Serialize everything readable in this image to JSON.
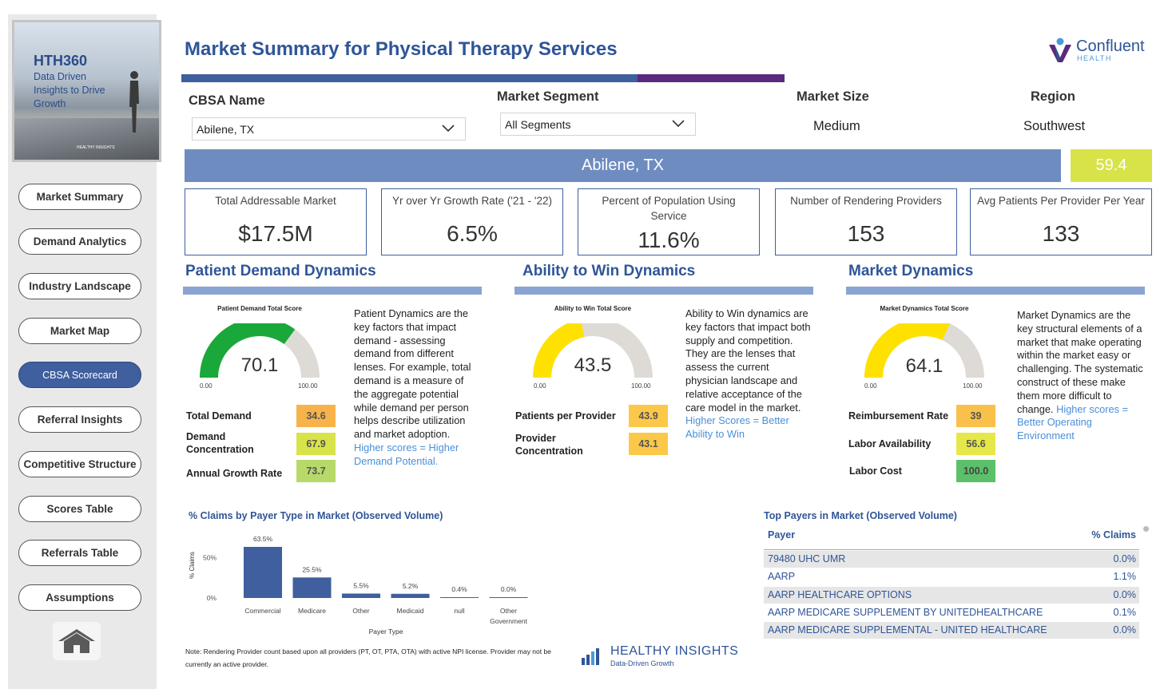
{
  "sidebar": {
    "logo_title": "HTH360",
    "logo_subtitle": "Data Driven Insights to Drive Growth",
    "logo_small": "HEALTHY INSIGHTS",
    "nav": [
      {
        "label": "Market Summary"
      },
      {
        "label": "Demand Analytics"
      },
      {
        "label": "Industry Landscape"
      },
      {
        "label": "Market Map"
      },
      {
        "label": "CBSA Scorecard"
      },
      {
        "label": "Referral Insights"
      },
      {
        "label": "Competitive Structure"
      },
      {
        "label": "Scores Table"
      },
      {
        "label": "Referrals Table"
      },
      {
        "label": "Assumptions"
      }
    ],
    "active_index": 4,
    "home_icon": "home-icon"
  },
  "header": {
    "title": "Market Summary for Physical Therapy Services",
    "brand_name": "Confluent",
    "brand_sub": "HEALTH"
  },
  "filters": {
    "cbsa_label": "CBSA Name",
    "cbsa_value": "Abilene, TX",
    "segment_label": "Market Segment",
    "segment_value": "All Segments",
    "size_label": "Market Size",
    "size_value": "Medium",
    "region_label": "Region",
    "region_value": "Southwest"
  },
  "banner": {
    "name": "Abilene, TX",
    "score": "59.4"
  },
  "kpis": [
    {
      "label": "Total Addressable Market",
      "value": "$17.5M"
    },
    {
      "label": "Yr over Yr Growth Rate ('21 - '22)",
      "value": "6.5%"
    },
    {
      "label": "Percent of Population Using Service",
      "value": "11.6%"
    },
    {
      "label": "Number of Rendering Providers",
      "value": "153"
    },
    {
      "label": "Avg Patients Per Provider Per Year",
      "value": "133"
    }
  ],
  "sections": {
    "patient": {
      "title": "Patient Demand Dynamics",
      "gauge_title": "Patient Demand Total Score",
      "score": "70.1",
      "score_value": 70.1,
      "min": "0.00",
      "max": "100.00",
      "color": "#1aa83a",
      "desc": "Patient Dynamics are the key factors that impact demand - assessing demand from different lenses. For example, total demand is a measure of the aggregate potential while demand per person helps describe utilization and market adoption.",
      "desc_hl": "Higher scores = Higher Demand Potential.",
      "metrics": [
        {
          "label": "Total Demand",
          "value": "34.6",
          "color": "#f7b34a"
        },
        {
          "label": "Demand Concentration",
          "value": "67.9",
          "color": "#d8e34a"
        },
        {
          "label": "Annual Growth Rate",
          "value": "73.7",
          "color": "#b6d96a"
        }
      ]
    },
    "win": {
      "title": "Ability to Win Dynamics",
      "gauge_title": "Ability to Win Total Score",
      "score": "43.5",
      "score_value": 43.5,
      "min": "0.00",
      "max": "100.00",
      "color": "#ffe100",
      "desc": "Ability to Win dynamics are key factors that impact both supply and competition. They are the lenses that assess the current physician landscape and relative acceptance of the care model in the market.",
      "desc_hl": "Higher Scores = Better Ability to Win",
      "metrics": [
        {
          "label": "Patients per Provider",
          "value": "43.9",
          "color": "#fcc84a"
        },
        {
          "label": "Provider Concentration",
          "value": "43.1",
          "color": "#fcc84a"
        }
      ]
    },
    "market": {
      "title": "Market Dynamics",
      "gauge_title": "Market Dynamics Total Score",
      "score": "64.1",
      "score_value": 64.1,
      "min": "0.00",
      "max": "100.00",
      "color": "#ffe100",
      "desc": "Market Dynamics are the key structural elements of a market that make operating within the market easy or challenging. The systematic construct of these make them more difficult to change.",
      "desc_hl": "Higher scores = Better Operating Environment",
      "metrics": [
        {
          "label": "Reimbursement Rate",
          "value": "39",
          "color": "#f9c04a"
        },
        {
          "label": "Labor Availability",
          "value": "56.6",
          "color": "#e6e84a"
        },
        {
          "label": "Labor Cost",
          "value": "100.0",
          "color": "#5cbf6a"
        }
      ]
    }
  },
  "chart_data": {
    "type": "bar",
    "title": "% Claims by Payer Type in Market (Observed Volume)",
    "xlabel": "Payer Type",
    "ylabel": "% Claims",
    "categories": [
      "Commercial",
      "Medicare",
      "Other",
      "Medicaid",
      "null",
      "Other Government"
    ],
    "values": [
      63.5,
      25.5,
      5.5,
      5.2,
      0.4,
      0.0
    ],
    "value_labels": [
      "63.5%",
      "25.5%",
      "5.5%",
      "5.2%",
      "0.4%",
      "0.0%"
    ],
    "ytick_labels": [
      "50%",
      "0%"
    ],
    "yticks": [
      50,
      0
    ],
    "ylim": [
      0,
      63.5
    ],
    "color": "#3f5f9e"
  },
  "payers": {
    "title": "Top Payers in Market (Observed Volume)",
    "col_payer": "Payer",
    "col_claims": "% Claims",
    "rows": [
      {
        "name": "79480 UHC UMR",
        "value": "0.0%"
      },
      {
        "name": "AARP",
        "value": "1.1%"
      },
      {
        "name": "AARP HEALTHCARE OPTIONS",
        "value": "0.0%"
      },
      {
        "name": "AARP MEDICARE SUPPLEMENT BY UNITEDHEALTHCARE",
        "value": "0.1%"
      },
      {
        "name": "AARP MEDICARE SUPPLEMENTAL - UNITED HEALTHCARE",
        "value": "0.0%"
      }
    ]
  },
  "footer": {
    "note": "Note:  Rendering Provider count based upon all providers (PT, OT, PTA, OTA) with active NPI license.  Provider may not be currently an active provider.",
    "brand": "HEALTHY INSIGHTS",
    "brand_sub": "Data-Driven Growth"
  }
}
